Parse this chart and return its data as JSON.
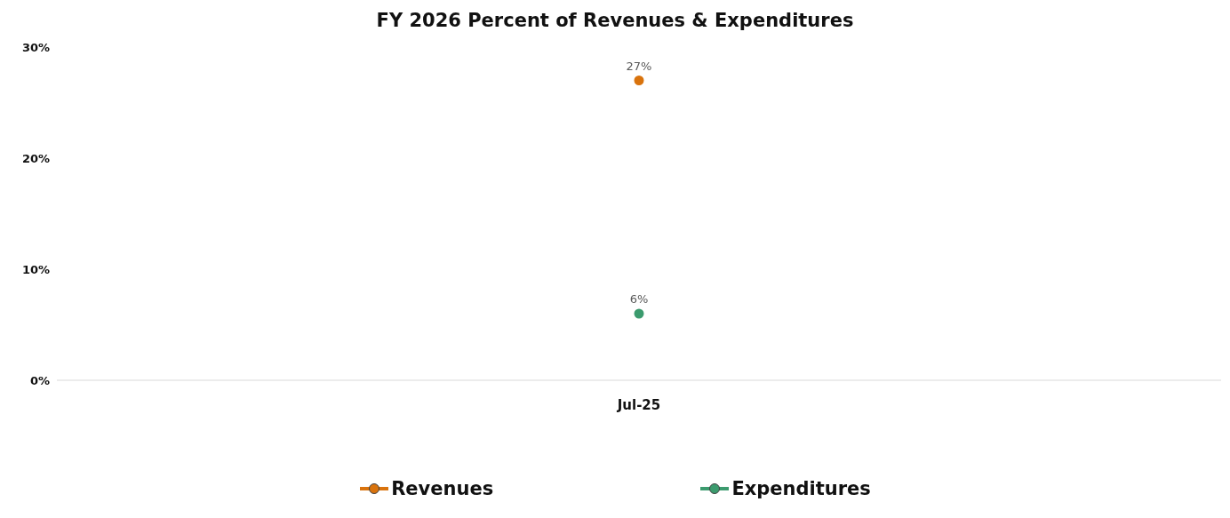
{
  "chart_data": {
    "type": "line",
    "title": "FY 2026 Percent of Revenues & Expenditures",
    "categories": [
      "Jul-25"
    ],
    "series": [
      {
        "name": "Revenues",
        "color": "#d9730d",
        "values": [
          27
        ],
        "value_labels": [
          "27%"
        ]
      },
      {
        "name": "Expenditures",
        "color": "#3c9b6e",
        "values": [
          6
        ],
        "value_labels": [
          "6%"
        ]
      }
    ],
    "ylim": [
      0,
      30
    ],
    "yticks": [
      {
        "value": 0,
        "label": "0%"
      },
      {
        "value": 10,
        "label": "10%"
      },
      {
        "value": 20,
        "label": "20%"
      },
      {
        "value": 30,
        "label": "30%"
      }
    ],
    "grid": false,
    "legend": "bottom",
    "marker": "circle",
    "line_style": "solid"
  }
}
